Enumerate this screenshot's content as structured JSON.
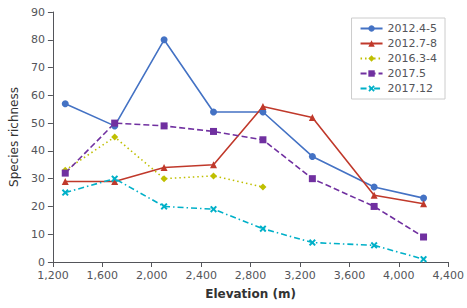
{
  "chart_data": {
    "type": "line",
    "x": [
      1300,
      1700,
      2100,
      2500,
      2900,
      3300,
      3800,
      4200
    ],
    "series": [
      {
        "name": "2012.4-5",
        "color": "#4472c4",
        "line_style": "solid",
        "marker": "circle",
        "values": [
          57,
          49,
          80,
          54,
          54,
          38,
          27,
          23
        ]
      },
      {
        "name": "2012.7-8",
        "color": "#c0392b",
        "line_style": "solid",
        "marker": "triangle",
        "values": [
          29,
          29,
          34,
          35,
          56,
          52,
          24,
          21
        ]
      },
      {
        "name": "2016.3-4",
        "color": "#bfbf00",
        "line_style": "dotted",
        "marker": "diamond",
        "values": [
          33,
          45,
          30,
          31,
          27,
          null,
          null,
          null
        ]
      },
      {
        "name": "2017.5",
        "color": "#7030a0",
        "line_style": "dashed",
        "marker": "square",
        "values": [
          32,
          50,
          49,
          47,
          44,
          30,
          20,
          9
        ]
      },
      {
        "name": "2017.12",
        "color": "#00b0c8",
        "line_style": "dashdot",
        "marker": "x",
        "values": [
          25,
          30,
          20,
          19,
          12,
          7,
          6,
          1
        ]
      }
    ],
    "xlabel": "Elevation (m)",
    "ylabel": "Species richness",
    "xlim": [
      1200,
      4400
    ],
    "ylim": [
      0,
      90
    ],
    "xticks": [
      1200,
      1600,
      2000,
      2400,
      2800,
      3200,
      3600,
      4000,
      4400
    ],
    "yticks": [
      0,
      10,
      20,
      30,
      40,
      50,
      60,
      70,
      80,
      90
    ],
    "grid": false,
    "legend": "upper right"
  }
}
